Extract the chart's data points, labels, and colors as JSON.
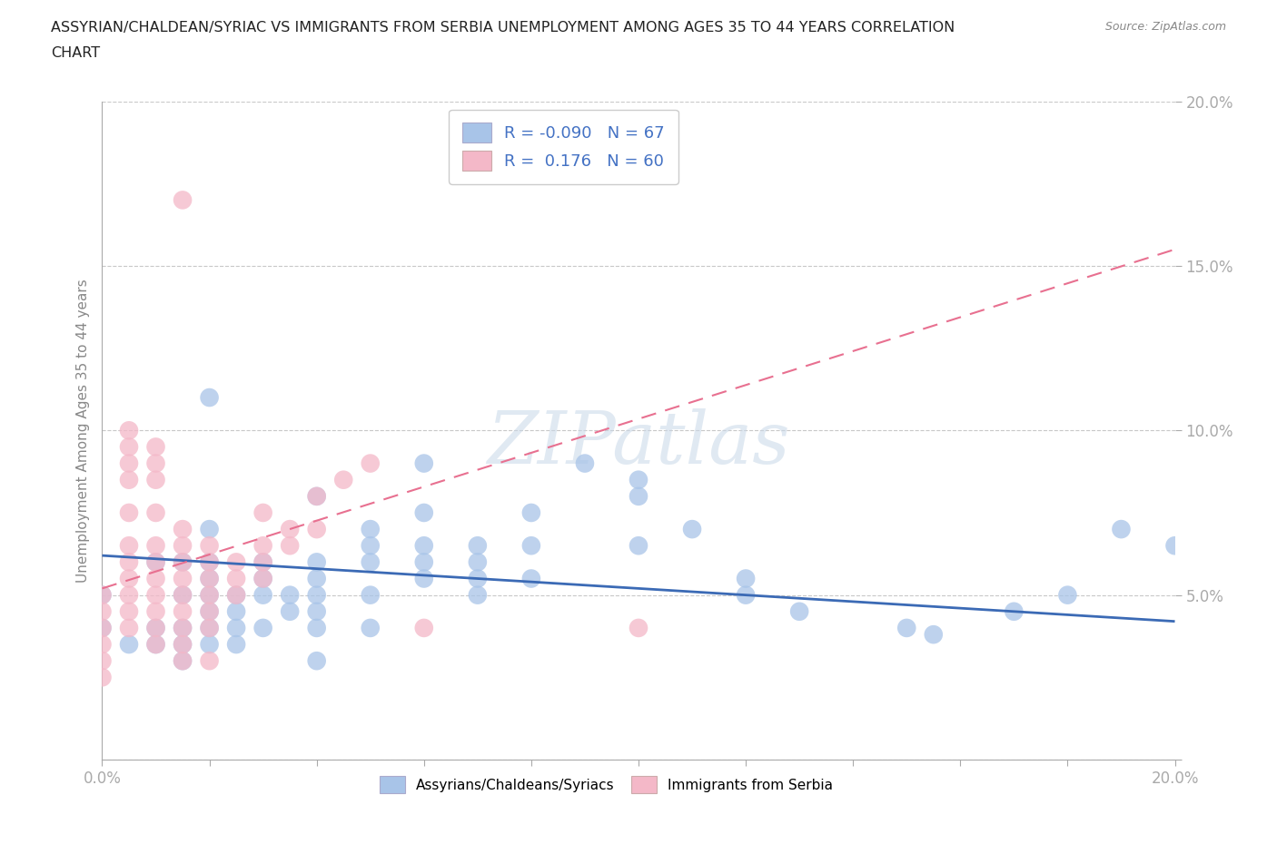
{
  "title_line1": "ASSYRIAN/CHALDEAN/SYRIAC VS IMMIGRANTS FROM SERBIA UNEMPLOYMENT AMONG AGES 35 TO 44 YEARS CORRELATION",
  "title_line2": "CHART",
  "source_text": "Source: ZipAtlas.com",
  "ylabel": "Unemployment Among Ages 35 to 44 years",
  "xlim": [
    0.0,
    0.2
  ],
  "ylim": [
    0.0,
    0.2
  ],
  "ytick_vals": [
    0.0,
    0.05,
    0.1,
    0.15,
    0.2
  ],
  "xtick_vals": [
    0.0,
    0.02,
    0.04,
    0.06,
    0.08,
    0.1,
    0.12,
    0.14,
    0.16,
    0.18,
    0.2
  ],
  "legend_labels": [
    "Assyrians/Chaldeans/Syriacs",
    "Immigrants from Serbia"
  ],
  "R_blue": -0.09,
  "N_blue": 67,
  "R_pink": 0.176,
  "N_pink": 60,
  "blue_scatter_color": "#a8c4e8",
  "pink_scatter_color": "#f4b8c8",
  "blue_line_color": "#3b6ab5",
  "pink_line_color": "#e87090",
  "watermark": "ZIPatlas",
  "background_color": "#ffffff",
  "tick_color": "#4472c4",
  "blue_points": [
    [
      0.0,
      0.05
    ],
    [
      0.0,
      0.04
    ],
    [
      0.005,
      0.035
    ],
    [
      0.01,
      0.06
    ],
    [
      0.01,
      0.035
    ],
    [
      0.01,
      0.04
    ],
    [
      0.015,
      0.06
    ],
    [
      0.015,
      0.05
    ],
    [
      0.015,
      0.04
    ],
    [
      0.015,
      0.035
    ],
    [
      0.015,
      0.03
    ],
    [
      0.02,
      0.11
    ],
    [
      0.02,
      0.07
    ],
    [
      0.02,
      0.06
    ],
    [
      0.02,
      0.055
    ],
    [
      0.02,
      0.05
    ],
    [
      0.02,
      0.045
    ],
    [
      0.02,
      0.04
    ],
    [
      0.02,
      0.035
    ],
    [
      0.025,
      0.05
    ],
    [
      0.025,
      0.045
    ],
    [
      0.025,
      0.04
    ],
    [
      0.025,
      0.035
    ],
    [
      0.03,
      0.06
    ],
    [
      0.03,
      0.055
    ],
    [
      0.03,
      0.05
    ],
    [
      0.03,
      0.04
    ],
    [
      0.035,
      0.05
    ],
    [
      0.035,
      0.045
    ],
    [
      0.04,
      0.08
    ],
    [
      0.04,
      0.06
    ],
    [
      0.04,
      0.055
    ],
    [
      0.04,
      0.05
    ],
    [
      0.04,
      0.045
    ],
    [
      0.04,
      0.04
    ],
    [
      0.04,
      0.03
    ],
    [
      0.05,
      0.07
    ],
    [
      0.05,
      0.065
    ],
    [
      0.05,
      0.06
    ],
    [
      0.05,
      0.05
    ],
    [
      0.05,
      0.04
    ],
    [
      0.06,
      0.09
    ],
    [
      0.06,
      0.075
    ],
    [
      0.06,
      0.065
    ],
    [
      0.06,
      0.06
    ],
    [
      0.06,
      0.055
    ],
    [
      0.07,
      0.065
    ],
    [
      0.07,
      0.06
    ],
    [
      0.07,
      0.055
    ],
    [
      0.07,
      0.05
    ],
    [
      0.08,
      0.075
    ],
    [
      0.08,
      0.065
    ],
    [
      0.08,
      0.055
    ],
    [
      0.09,
      0.09
    ],
    [
      0.1,
      0.085
    ],
    [
      0.1,
      0.08
    ],
    [
      0.1,
      0.065
    ],
    [
      0.11,
      0.07
    ],
    [
      0.12,
      0.055
    ],
    [
      0.12,
      0.05
    ],
    [
      0.13,
      0.045
    ],
    [
      0.15,
      0.04
    ],
    [
      0.155,
      0.038
    ],
    [
      0.17,
      0.045
    ],
    [
      0.18,
      0.05
    ],
    [
      0.19,
      0.07
    ],
    [
      0.2,
      0.065
    ]
  ],
  "pink_points": [
    [
      0.0,
      0.05
    ],
    [
      0.0,
      0.045
    ],
    [
      0.0,
      0.04
    ],
    [
      0.0,
      0.035
    ],
    [
      0.0,
      0.03
    ],
    [
      0.0,
      0.025
    ],
    [
      0.005,
      0.1
    ],
    [
      0.005,
      0.095
    ],
    [
      0.005,
      0.09
    ],
    [
      0.005,
      0.085
    ],
    [
      0.005,
      0.075
    ],
    [
      0.005,
      0.065
    ],
    [
      0.005,
      0.06
    ],
    [
      0.005,
      0.055
    ],
    [
      0.005,
      0.05
    ],
    [
      0.005,
      0.045
    ],
    [
      0.005,
      0.04
    ],
    [
      0.01,
      0.095
    ],
    [
      0.01,
      0.09
    ],
    [
      0.01,
      0.085
    ],
    [
      0.01,
      0.075
    ],
    [
      0.01,
      0.065
    ],
    [
      0.01,
      0.06
    ],
    [
      0.01,
      0.055
    ],
    [
      0.01,
      0.05
    ],
    [
      0.01,
      0.045
    ],
    [
      0.01,
      0.04
    ],
    [
      0.01,
      0.035
    ],
    [
      0.015,
      0.17
    ],
    [
      0.015,
      0.07
    ],
    [
      0.015,
      0.065
    ],
    [
      0.015,
      0.06
    ],
    [
      0.015,
      0.055
    ],
    [
      0.015,
      0.05
    ],
    [
      0.015,
      0.045
    ],
    [
      0.015,
      0.04
    ],
    [
      0.015,
      0.035
    ],
    [
      0.015,
      0.03
    ],
    [
      0.02,
      0.065
    ],
    [
      0.02,
      0.06
    ],
    [
      0.02,
      0.055
    ],
    [
      0.02,
      0.05
    ],
    [
      0.02,
      0.045
    ],
    [
      0.02,
      0.04
    ],
    [
      0.02,
      0.03
    ],
    [
      0.025,
      0.06
    ],
    [
      0.025,
      0.055
    ],
    [
      0.025,
      0.05
    ],
    [
      0.03,
      0.075
    ],
    [
      0.03,
      0.065
    ],
    [
      0.03,
      0.06
    ],
    [
      0.03,
      0.055
    ],
    [
      0.035,
      0.07
    ],
    [
      0.035,
      0.065
    ],
    [
      0.04,
      0.08
    ],
    [
      0.04,
      0.07
    ],
    [
      0.045,
      0.085
    ],
    [
      0.05,
      0.09
    ],
    [
      0.06,
      0.04
    ],
    [
      0.1,
      0.04
    ]
  ],
  "blue_trendline": [
    0.0,
    0.2,
    0.062,
    0.042
  ],
  "pink_trendline": [
    0.0,
    0.2,
    0.052,
    0.155
  ]
}
